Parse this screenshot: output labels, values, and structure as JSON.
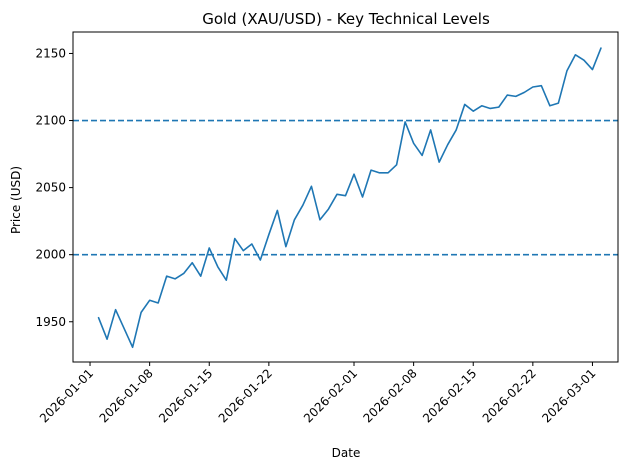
{
  "chart_data": {
    "type": "line",
    "title": "Gold (XAU/USD) - Key Technical Levels",
    "xlabel": "Date",
    "ylabel": "Price (USD)",
    "x_range": [
      "2025-12-30",
      "2026-03-04"
    ],
    "ylim": [
      1920,
      2166
    ],
    "grid": false,
    "x_ticks": [
      "2026-01-01",
      "2026-01-08",
      "2026-01-15",
      "2026-01-22",
      "2026-02-01",
      "2026-02-08",
      "2026-02-15",
      "2026-02-22",
      "2026-03-01"
    ],
    "y_ticks": [
      1950,
      2000,
      2050,
      2100,
      2150
    ],
    "series": [
      {
        "color": "#1f77b4",
        "x": [
          "2026-01-02",
          "2026-01-03",
          "2026-01-04",
          "2026-01-05",
          "2026-01-06",
          "2026-01-07",
          "2026-01-08",
          "2026-01-09",
          "2026-01-10",
          "2026-01-11",
          "2026-01-12",
          "2026-01-13",
          "2026-01-14",
          "2026-01-15",
          "2026-01-16",
          "2026-01-17",
          "2026-01-18",
          "2026-01-19",
          "2026-01-20",
          "2026-01-21",
          "2026-01-22",
          "2026-01-23",
          "2026-01-24",
          "2026-01-25",
          "2026-01-26",
          "2026-01-27",
          "2026-01-28",
          "2026-01-29",
          "2026-01-30",
          "2026-01-31",
          "2026-02-01",
          "2026-02-02",
          "2026-02-03",
          "2026-02-04",
          "2026-02-05",
          "2026-02-06",
          "2026-02-07",
          "2026-02-08",
          "2026-02-09",
          "2026-02-10",
          "2026-02-11",
          "2026-02-12",
          "2026-02-13",
          "2026-02-14",
          "2026-02-15",
          "2026-02-16",
          "2026-02-17",
          "2026-02-18",
          "2026-02-19",
          "2026-02-20",
          "2026-02-21",
          "2026-02-22",
          "2026-02-23",
          "2026-02-24",
          "2026-02-25",
          "2026-02-26",
          "2026-02-27",
          "2026-02-28",
          "2026-03-01",
          "2026-03-02"
        ],
        "y": [
          1953,
          1937,
          1959,
          1945,
          1931,
          1957,
          1966,
          1964,
          1984,
          1982,
          1986,
          1994,
          1984,
          2005,
          1991,
          1981,
          2012,
          2003,
          2008,
          1996,
          2015,
          2033,
          2006,
          2026,
          2037,
          2051,
          2026,
          2034,
          2045,
          2044,
          2060,
          2043,
          2063,
          2061,
          2061,
          2067,
          2099,
          2083,
          2074,
          2093,
          2069,
          2082,
          2093,
          2112,
          2107,
          2111,
          2109,
          2110,
          2119,
          2118,
          2121,
          2125,
          2126,
          2111,
          2113,
          2137,
          2149,
          2145,
          2138,
          2154
        ]
      }
    ],
    "reference_lines": [
      {
        "y": 2100,
        "color": "#1f77b4",
        "style": "dashed"
      },
      {
        "y": 2000,
        "color": "#1f77b4",
        "style": "dashed"
      }
    ]
  }
}
